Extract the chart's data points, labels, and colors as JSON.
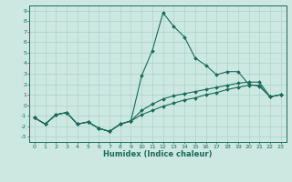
{
  "xlabel": "Humidex (Indice chaleur)",
  "bg_color": "#cce8e0",
  "line_color": "#1a6b5a",
  "grid_color": "#aad4cc",
  "xlim": [
    -0.5,
    23.5
  ],
  "ylim": [
    -3.5,
    9.5
  ],
  "xticks": [
    0,
    1,
    2,
    3,
    4,
    5,
    6,
    7,
    8,
    9,
    10,
    11,
    12,
    13,
    14,
    15,
    16,
    17,
    18,
    19,
    20,
    21,
    22,
    23
  ],
  "yticks": [
    -3,
    -2,
    -1,
    0,
    1,
    2,
    3,
    4,
    5,
    6,
    7,
    8,
    9
  ],
  "series": [
    {
      "x": [
        0,
        1,
        2,
        3,
        4,
        5,
        6,
        7,
        8,
        9,
        10,
        11,
        12,
        13,
        14,
        15,
        16,
        17,
        18,
        19,
        20,
        21,
        22,
        23
      ],
      "y": [
        -1.2,
        -1.8,
        -0.9,
        -0.7,
        -1.8,
        -1.6,
        -2.2,
        -2.5,
        -1.8,
        -1.5,
        2.8,
        5.2,
        8.8,
        7.5,
        6.5,
        4.5,
        3.8,
        2.9,
        3.2,
        3.2,
        2.0,
        1.8,
        0.8,
        1.0
      ]
    },
    {
      "x": [
        0,
        1,
        2,
        3,
        4,
        5,
        6,
        7,
        8,
        9,
        10,
        11,
        12,
        13,
        14,
        15,
        16,
        17,
        18,
        19,
        20,
        21,
        22,
        23
      ],
      "y": [
        -1.2,
        -1.8,
        -0.9,
        -0.7,
        -1.8,
        -1.6,
        -2.2,
        -2.5,
        -1.8,
        -1.5,
        -0.9,
        -0.5,
        -0.1,
        0.2,
        0.5,
        0.7,
        1.0,
        1.2,
        1.5,
        1.7,
        1.9,
        1.9,
        0.8,
        1.0
      ]
    },
    {
      "x": [
        0,
        1,
        2,
        3,
        4,
        5,
        6,
        7,
        8,
        9,
        10,
        11,
        12,
        13,
        14,
        15,
        16,
        17,
        18,
        19,
        20,
        21,
        22,
        23
      ],
      "y": [
        -1.2,
        -1.8,
        -0.9,
        -0.7,
        -1.8,
        -1.6,
        -2.2,
        -2.5,
        -1.8,
        -1.5,
        -0.5,
        0.1,
        0.6,
        0.9,
        1.1,
        1.3,
        1.5,
        1.7,
        1.9,
        2.1,
        2.2,
        2.2,
        0.8,
        1.0
      ]
    }
  ]
}
